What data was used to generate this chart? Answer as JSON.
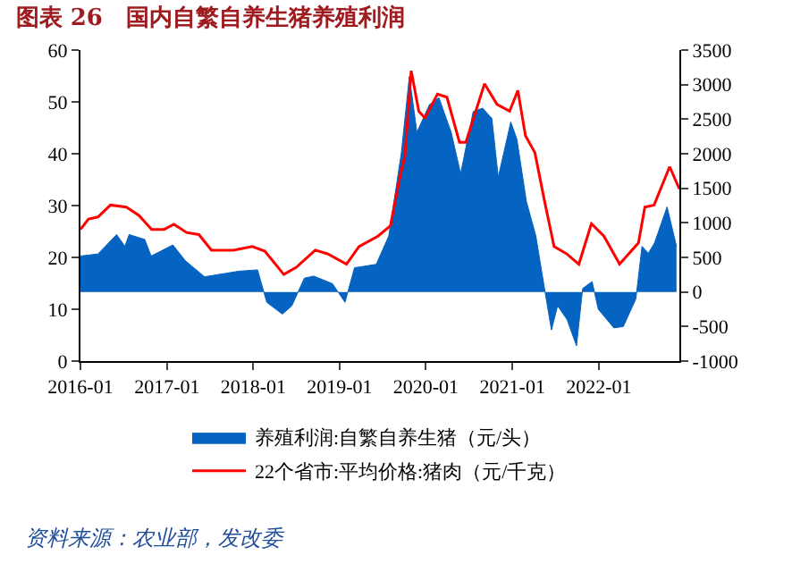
{
  "chart_data": {
    "type": "line",
    "title": "图表 26　国内自繁自养生猪养殖利润",
    "annotations": [
      "资料来源：农业部，发改委"
    ],
    "series": [
      {
        "name": "养殖利润:自繁自养生猪（元/头）",
        "type": "area",
        "axis": "y2",
        "color": "#0563c1",
        "x": [
          "2016-01-01",
          "2016-03-15",
          "2016-06-02",
          "2016-07-07",
          "2016-07-25",
          "2016-09-29",
          "2016-10-26",
          "2017-01-26",
          "2017-03-20",
          "2017-06-09",
          "2017-10-31",
          "2018-01-19",
          "2018-02-27",
          "2018-05-04",
          "2018-06-13",
          "2018-08-05",
          "2018-09-14",
          "2018-12-02",
          "2019-01-24",
          "2019-03-05",
          "2019-06-05",
          "2019-07-28",
          "2019-09-19",
          "2019-10-23",
          "2019-11-24",
          "2020-01-16",
          "2020-02-25",
          "2020-04-17",
          "2020-05-27",
          "2020-07-19",
          "2020-08-28",
          "2020-10-06",
          "2020-11-02",
          "2020-12-25",
          "2021-01-20",
          "2021-03-01",
          "2021-04-10",
          "2021-05-19",
          "2021-06-15",
          "2021-07-11",
          "2021-08-20",
          "2021-09-29",
          "2021-10-25",
          "2021-12-04",
          "2021-12-30",
          "2022-03-06",
          "2022-04-15",
          "2022-06-07",
          "2022-07-03",
          "2022-07-30",
          "2022-08-25",
          "2022-10-17",
          "2022-11-26"
        ],
        "values": [
          520,
          550,
          830,
          660,
          830,
          760,
          520,
          680,
          450,
          220,
          300,
          320,
          -150,
          -320,
          -200,
          200,
          230,
          120,
          -150,
          350,
          400,
          810,
          2010,
          3120,
          2310,
          2710,
          2810,
          2310,
          1710,
          2610,
          2660,
          2510,
          1660,
          2460,
          2210,
          1310,
          810,
          0,
          -550,
          -200,
          -400,
          -780,
          50,
          150,
          -250,
          -520,
          -500,
          -100,
          660,
          560,
          710,
          1230,
          660
        ]
      },
      {
        "name": "22个省市:平均价格:猪肉（元/千克）",
        "color": "#ff0000",
        "x": [
          "2016-01-01",
          "2016-02-04",
          "2016-03-15",
          "2016-05-07",
          "2016-07-13",
          "2016-09-04",
          "2016-10-28",
          "2016-12-20",
          "2017-01-30",
          "2017-03-25",
          "2017-05-16",
          "2017-07-08",
          "2017-10-09",
          "2017-12-28",
          "2018-02-19",
          "2018-05-10",
          "2018-07-02",
          "2018-09-20",
          "2018-11-11",
          "2019-01-30",
          "2019-03-24",
          "2019-06-12",
          "2019-08-04",
          "2019-09-13",
          "2019-10-04",
          "2019-10-31",
          "2019-12-02",
          "2019-12-28",
          "2020-02-19",
          "2020-03-30",
          "2020-05-22",
          "2020-06-18",
          "2020-09-05",
          "2020-10-28",
          "2020-12-20",
          "2021-01-24",
          "2021-02-25",
          "2021-04-06",
          "2021-05-17",
          "2021-06-26",
          "2021-08-18",
          "2021-10-09",
          "2021-12-01",
          "2022-01-23",
          "2022-03-30",
          "2022-06-18",
          "2022-07-15",
          "2022-08-23",
          "2022-10-28",
          "2022-12-08"
        ],
        "values": [
          25.4,
          27.4,
          27.8,
          30.1,
          29.7,
          28.1,
          25.4,
          25.4,
          26.4,
          24.8,
          24.4,
          21.4,
          21.4,
          22.1,
          21.2,
          16.7,
          18.1,
          21.4,
          20.7,
          18.7,
          22.1,
          24.1,
          26.1,
          35.5,
          39.5,
          56.0,
          48.2,
          46.9,
          51.5,
          50.9,
          42.2,
          42.2,
          53.5,
          49.5,
          48.2,
          52.2,
          43.5,
          40.2,
          30.8,
          22.1,
          20.7,
          18.7,
          26.5,
          24.1,
          18.7,
          22.8,
          29.7,
          30.1,
          37.5,
          33.2
        ]
      }
    ],
    "xlim": [
      "2016-01-01",
      "2022-12-08"
    ],
    "xticks": [
      {
        "value": "2016-01",
        "label": "2016-01"
      },
      {
        "value": "2017-01",
        "label": "2017-01"
      },
      {
        "value": "2018-01",
        "label": "2018-01"
      },
      {
        "value": "2019-01",
        "label": "2019-01"
      },
      {
        "value": "2020-01",
        "label": "2020-01"
      },
      {
        "value": "2021-01",
        "label": "2021-01"
      },
      {
        "value": "2022-01",
        "label": "2022-01"
      }
    ],
    "ylim": [
      0,
      60
    ],
    "yticks": [
      0,
      10,
      20,
      30,
      40,
      50,
      60
    ],
    "y2lim": [
      -1000,
      3500
    ],
    "y2ticks": [
      -1000,
      -500,
      0,
      500,
      1000,
      1500,
      2000,
      2500,
      3000,
      3500
    ],
    "legend": "bottom"
  }
}
